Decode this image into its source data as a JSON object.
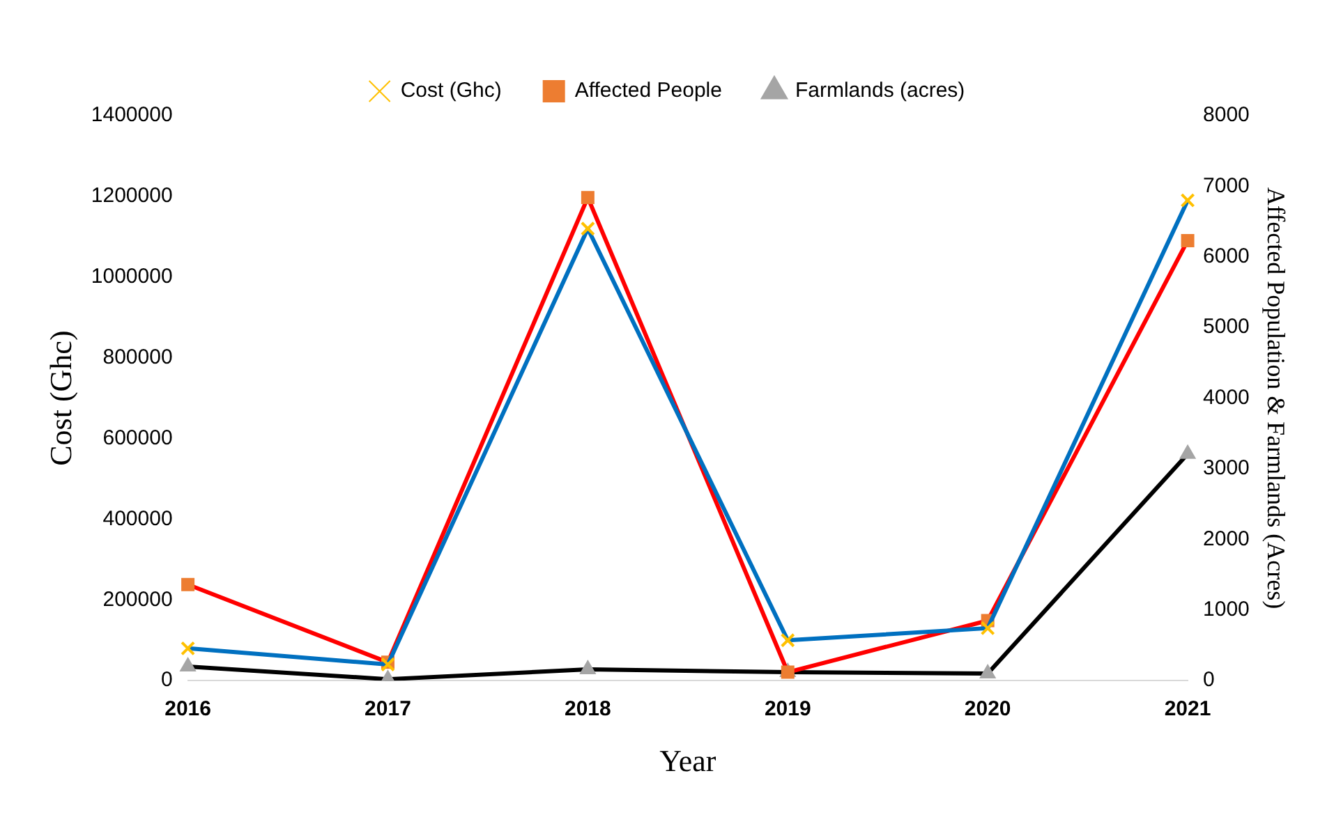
{
  "chart_data": {
    "type": "line",
    "categories": [
      "2016",
      "2017",
      "2018",
      "2019",
      "2020",
      "2021"
    ],
    "xlabel": "Year",
    "ylabel": "Cost (Ghc)",
    "y2label": "Affected Population & Farmlands (Acres)",
    "ylim": [
      0,
      1400000
    ],
    "yticks": [
      0,
      200000,
      400000,
      600000,
      800000,
      1000000,
      1200000,
      1400000
    ],
    "y2lim": [
      0,
      8000
    ],
    "y2ticks": [
      0,
      1000,
      2000,
      3000,
      4000,
      5000,
      6000,
      7000,
      8000
    ],
    "grid": false,
    "legend": "top",
    "line_style": "solid",
    "series": [
      {
        "name": "Cost (Ghc)",
        "color": "#0070c0",
        "marker": "cross",
        "colors": [
          "#ffc000",
          "#ffc000",
          "#ffc000",
          "#ffc000",
          "#ffc000",
          "#ffc000"
        ],
        "values": [
          80000,
          40000,
          1120000,
          100000,
          130000,
          1190000
        ]
      },
      {
        "name": "Affected People",
        "color": "#ff0000",
        "marker": "square",
        "colors": [
          "#ed7d31",
          "#ed7d31",
          "#ed7d31",
          "#ed7d31",
          "#ed7d31",
          "#ed7d31"
        ],
        "axis": "y2",
        "values": [
          1360,
          260,
          6840,
          120,
          850,
          6230
        ]
      },
      {
        "name": "Farmlands (acres)",
        "color": "#000000",
        "marker": "triangle",
        "colors": [
          "#a5a5a5",
          "#a5a5a5",
          "#a5a5a5",
          "#a5a5a5",
          "#a5a5a5",
          "#a5a5a5"
        ],
        "axis": "y2",
        "values": [
          200,
          20,
          160,
          120,
          100,
          3210
        ]
      }
    ]
  }
}
